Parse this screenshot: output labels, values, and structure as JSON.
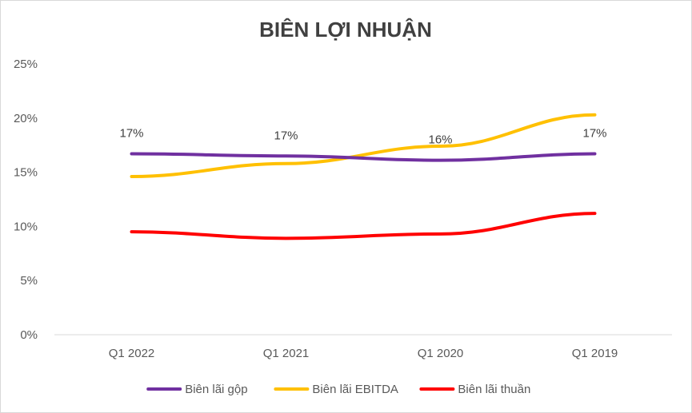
{
  "chart_data": {
    "type": "line",
    "title": "BIÊN LỢI NHUẬN",
    "categories": [
      "Q1 2022",
      "Q1 2021",
      "Q1 2020",
      "Q1 2019"
    ],
    "y_ticks": [
      "0%",
      "5%",
      "10%",
      "15%",
      "20%",
      "25%"
    ],
    "ylim": [
      0,
      25
    ],
    "grid": false,
    "legend_position": "bottom",
    "series": [
      {
        "name": "Biên lãi gộp",
        "color": "#7030a0",
        "values": [
          16.7,
          16.5,
          16.1,
          16.7
        ],
        "labels": [
          "17%",
          "17%",
          "16%",
          "17%"
        ]
      },
      {
        "name": "Biên lãi EBITDA",
        "color": "#ffc000",
        "values": [
          14.6,
          15.8,
          17.4,
          20.3
        ]
      },
      {
        "name": "Biên lãi thuần",
        "color": "#ff0000",
        "values": [
          9.5,
          8.9,
          9.3,
          11.2
        ]
      }
    ]
  }
}
